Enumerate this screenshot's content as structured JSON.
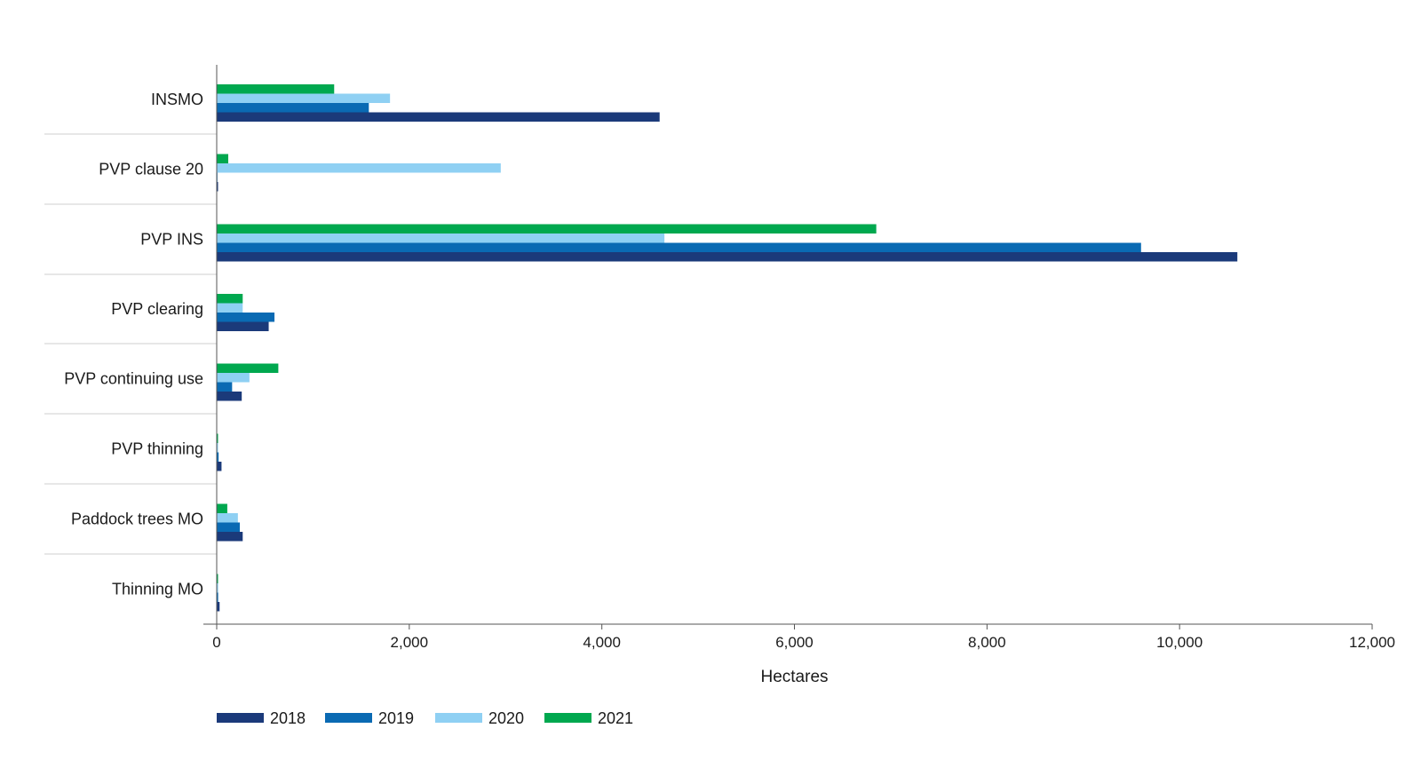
{
  "chart_data": {
    "type": "bar",
    "orientation": "horizontal",
    "categories": [
      "INSMO",
      "PVP clause 20",
      "PVP INS",
      "PVP clearing",
      "PVP continuing use",
      "PVP thinning",
      "Paddock trees MO",
      "Thinning MO"
    ],
    "series": [
      {
        "name": "2018",
        "color": "#1b3a7a",
        "values": [
          4600,
          10,
          10600,
          540,
          260,
          50,
          270,
          30
        ]
      },
      {
        "name": "2019",
        "color": "#0a6ab3",
        "values": [
          1580,
          0,
          9600,
          600,
          160,
          20,
          240,
          15
        ]
      },
      {
        "name": "2020",
        "color": "#8fd0f3",
        "values": [
          1800,
          2950,
          4650,
          270,
          340,
          10,
          220,
          15
        ]
      },
      {
        "name": "2021",
        "color": "#00a84f",
        "values": [
          1220,
          120,
          6850,
          270,
          640,
          10,
          110,
          10
        ]
      }
    ],
    "xlim": [
      0,
      12000
    ],
    "xticks": [
      "0",
      "2,000",
      "4,000",
      "6,000",
      "8,000",
      "10,000",
      "12,000"
    ],
    "xlabel": "Hectares",
    "title": "",
    "grid": false,
    "legend_position": "bottom-left"
  }
}
